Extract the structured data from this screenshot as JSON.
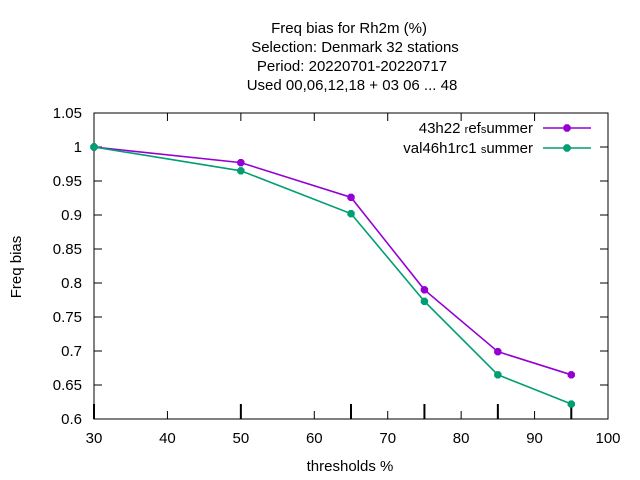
{
  "chart_data": {
    "type": "line",
    "title_lines": [
      "Freq bias  for Rh2m (%)",
      "Selection: Denmark     32 stations",
      "Period: 20220701-20220717",
      "Used  00,06,12,18  + 03 06 ... 48"
    ],
    "xlabel": "thresholds %",
    "ylabel": "Freq bias",
    "xlim": [
      30,
      100
    ],
    "ylim": [
      0.6,
      1.05
    ],
    "x_ticks": [
      30,
      40,
      50,
      60,
      70,
      80,
      90,
      100
    ],
    "x_tick_labels": [
      "30",
      "40",
      "50",
      "60",
      "70",
      "80",
      "90",
      "100"
    ],
    "y_ticks": [
      0.6,
      0.65,
      0.7,
      0.75,
      0.8,
      0.85,
      0.9,
      0.95,
      1,
      1.05
    ],
    "y_tick_labels": [
      "0.6",
      "0.65",
      "0.7",
      "0.75",
      "0.8",
      "0.85",
      "0.9",
      "0.95",
      "1",
      "1.05"
    ],
    "threshold_marks": [
      30,
      50,
      65,
      75,
      85,
      95
    ],
    "grid": false,
    "legend_position": "top-right",
    "series": [
      {
        "name": "43h22_ref_summer",
        "legend_parts": [
          [
            "43h22 ",
            "n"
          ],
          [
            "r",
            "sub"
          ],
          [
            "ef",
            "n"
          ],
          [
            "s",
            "sub"
          ],
          [
            "ummer",
            "n"
          ]
        ],
        "color": "#9400d3",
        "x": [
          30,
          50,
          65,
          75,
          85,
          95
        ],
        "values": [
          1.0,
          0.977,
          0.926,
          0.79,
          0.699,
          0.665
        ]
      },
      {
        "name": "val46h1rc1_summer",
        "legend_parts": [
          [
            "val46h1rc1 ",
            "n"
          ],
          [
            "s",
            "sub"
          ],
          [
            "ummer",
            "n"
          ]
        ],
        "color": "#009e73",
        "x": [
          30,
          50,
          65,
          75,
          85,
          95
        ],
        "values": [
          1.0,
          0.965,
          0.902,
          0.773,
          0.665,
          0.622
        ]
      }
    ]
  }
}
